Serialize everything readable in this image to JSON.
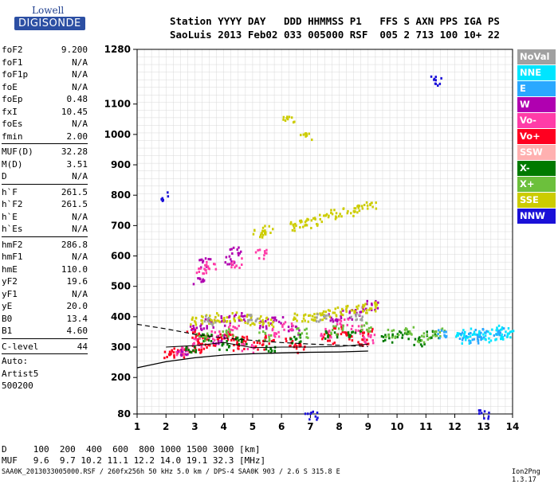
{
  "logo": {
    "top": "Lowell",
    "bottom": "DIGISONDE"
  },
  "header": {
    "line1": "Station YYYY DAY   DDD HHMMSS P1   FFS S AXN PPS IGA PS",
    "line2": "SaoLuis 2013 Feb02 033 005000 RSF  005 2 713 100 10+ 22"
  },
  "params": {
    "group1": [
      {
        "name": "foF2",
        "value": "9.200"
      },
      {
        "name": "foF1",
        "value": "N/A"
      },
      {
        "name": "foF1p",
        "value": "N/A"
      },
      {
        "name": "foE",
        "value": "N/A"
      },
      {
        "name": "foEp",
        "value": "0.48"
      },
      {
        "name": "fxI",
        "value": "10.45"
      },
      {
        "name": "foEs",
        "value": "N/A"
      },
      {
        "name": "fmin",
        "value": "2.00"
      }
    ],
    "group2": [
      {
        "name": "MUF(D)",
        "value": "32.28"
      },
      {
        "name": "M(D)",
        "value": "3.51"
      },
      {
        "name": "D",
        "value": "N/A"
      }
    ],
    "group3": [
      {
        "name": "h`F",
        "value": "261.5"
      },
      {
        "name": "h`F2",
        "value": "261.5"
      },
      {
        "name": "h`E",
        "value": "N/A"
      },
      {
        "name": "h`Es",
        "value": "N/A"
      }
    ],
    "group4": [
      {
        "name": "hmF2",
        "value": "286.8"
      },
      {
        "name": "hmF1",
        "value": "N/A"
      },
      {
        "name": "hmE",
        "value": "110.0"
      },
      {
        "name": "yF2",
        "value": "19.6"
      },
      {
        "name": "yF1",
        "value": "N/A"
      },
      {
        "name": "yE",
        "value": "20.0"
      },
      {
        "name": "B0",
        "value": "13.4"
      },
      {
        "name": "B1",
        "value": "4.60"
      }
    ],
    "clevel": {
      "name": "C-level",
      "value": "44"
    },
    "extra": [
      "Auto:",
      "Artist5",
      "500200"
    ]
  },
  "legend": [
    {
      "label": "NoVal",
      "color": "#a0a0a0"
    },
    {
      "label": "NNE",
      "color": "#00e5ff"
    },
    {
      "label": "E",
      "color": "#2aa8ff"
    },
    {
      "label": "W",
      "color": "#b000b0"
    },
    {
      "label": "Vo-",
      "color": "#ff3ca8"
    },
    {
      "label": "Vo+",
      "color": "#ff0020"
    },
    {
      "label": "SSW",
      "color": "#ffb0b0"
    },
    {
      "label": "X-",
      "color": "#007a00"
    },
    {
      "label": "X+",
      "color": "#6cc03c"
    },
    {
      "label": "SSE",
      "color": "#cccc00"
    },
    {
      "label": "NNW",
      "color": "#1a10d8"
    }
  ],
  "bottom": {
    "line1": "D     100  200  400  600  800 1000 1500 3000 [km]",
    "line2": "MUF   9.6  9.7 10.2 11.1 12.2 14.0 19.1 32.3 [MHz]"
  },
  "footer": "SAA0K_2013033005000.RSF / 260fx256h 50 kHz 5.0 km / DPS-4 SAA0K 903 / 2.6 S 315.8 E",
  "version": "Ion2Png 1.3.17",
  "chart_data": {
    "type": "scatter",
    "x": {
      "ticks": [
        1,
        2,
        3,
        4,
        5,
        6,
        7,
        8,
        9,
        10,
        11,
        12,
        13,
        14
      ],
      "range": [
        1,
        14
      ]
    },
    "y": {
      "ticks": [
        80,
        200,
        300,
        400,
        500,
        600,
        700,
        800,
        900,
        1000,
        1100,
        1280
      ],
      "range": [
        80,
        1280
      ]
    },
    "grid": true,
    "clusters": [
      {
        "color": "#ff0020",
        "pts": [
          [
            2.1,
            280
          ],
          [
            2.4,
            285
          ],
          [
            2.7,
            292
          ],
          [
            3.0,
            300
          ],
          [
            3.3,
            310
          ],
          [
            3.6,
            320
          ],
          [
            4.0,
            330
          ],
          [
            4.3,
            340
          ],
          [
            4.6,
            335
          ],
          [
            2.9,
            350
          ],
          [
            3.2,
            330
          ],
          [
            4.5,
            300
          ],
          [
            5.2,
            310
          ],
          [
            5.5,
            330
          ],
          [
            6.3,
            320
          ],
          [
            6.6,
            300
          ],
          [
            7.6,
            330
          ],
          [
            8.0,
            360
          ],
          [
            8.4,
            340
          ],
          [
            8.8,
            320
          ],
          [
            9.0,
            350
          ]
        ]
      },
      {
        "color": "#b000b0",
        "pts": [
          [
            3.0,
            370
          ],
          [
            3.5,
            380
          ],
          [
            4.1,
            390
          ],
          [
            4.5,
            400
          ],
          [
            5.3,
            380
          ],
          [
            5.8,
            390
          ],
          [
            6.4,
            360
          ],
          [
            7.8,
            400
          ],
          [
            8.2,
            410
          ],
          [
            8.7,
            420
          ],
          [
            3.3,
            580
          ],
          [
            4.2,
            590
          ],
          [
            4.4,
            620
          ],
          [
            3.1,
            520
          ],
          [
            9.1,
            440
          ],
          [
            2.6,
            280
          ],
          [
            3.8,
            330
          ]
        ]
      },
      {
        "color": "#cccc00",
        "pts": [
          [
            3.0,
            390
          ],
          [
            3.4,
            395
          ],
          [
            3.8,
            400
          ],
          [
            4.2,
            402
          ],
          [
            4.7,
            395
          ],
          [
            5.1,
            390
          ],
          [
            5.5,
            385
          ],
          [
            6.6,
            400
          ],
          [
            6.9,
            400
          ],
          [
            7.2,
            402
          ],
          [
            7.6,
            410
          ],
          [
            8.0,
            420
          ],
          [
            8.4,
            425
          ],
          [
            8.8,
            430
          ],
          [
            9.1,
            435
          ],
          [
            5.2,
            680
          ],
          [
            5.5,
            690
          ],
          [
            6.5,
            700
          ],
          [
            6.8,
            710
          ],
          [
            7.0,
            715
          ],
          [
            7.5,
            730
          ],
          [
            7.9,
            740
          ],
          [
            8.3,
            745
          ],
          [
            8.7,
            760
          ],
          [
            9.1,
            775
          ],
          [
            6.2,
            1050
          ],
          [
            6.8,
            1000
          ]
        ]
      },
      {
        "color": "#ff3ca8",
        "pts": [
          [
            2.5,
            290
          ],
          [
            3.1,
            320
          ],
          [
            3.6,
            340
          ],
          [
            4.3,
            360
          ],
          [
            4.8,
            300
          ],
          [
            5.7,
            350
          ],
          [
            6.2,
            370
          ],
          [
            7.5,
            350
          ],
          [
            8.1,
            380
          ],
          [
            8.6,
            360
          ],
          [
            3.2,
            560
          ],
          [
            3.5,
            570
          ],
          [
            4.4,
            580
          ],
          [
            5.3,
            610
          ],
          [
            9.0,
            330
          ]
        ]
      },
      {
        "color": "#007a00",
        "pts": [
          [
            2.8,
            300
          ],
          [
            3.4,
            330
          ],
          [
            4.0,
            310
          ],
          [
            4.6,
            320
          ],
          [
            5.6,
            300
          ],
          [
            6.5,
            330
          ],
          [
            7.7,
            340
          ],
          [
            8.5,
            350
          ],
          [
            9.6,
            330
          ],
          [
            10.2,
            340
          ],
          [
            10.7,
            320
          ],
          [
            11.2,
            345
          ]
        ]
      },
      {
        "color": "#6cc03c",
        "pts": [
          [
            3.2,
            340
          ],
          [
            4.1,
            350
          ],
          [
            5.4,
            340
          ],
          [
            6.7,
            350
          ],
          [
            7.9,
            360
          ],
          [
            8.9,
            370
          ],
          [
            9.8,
            345
          ],
          [
            10.4,
            360
          ],
          [
            10.9,
            335
          ],
          [
            11.4,
            355
          ]
        ]
      },
      {
        "color": "#00e5ff",
        "pts": [
          [
            12.2,
            345
          ],
          [
            12.6,
            350
          ],
          [
            13.0,
            345
          ],
          [
            13.4,
            360
          ],
          [
            13.8,
            350
          ],
          [
            12.4,
            330
          ],
          [
            13.2,
            335
          ],
          [
            13.6,
            340
          ]
        ]
      },
      {
        "color": "#2aa8ff",
        "pts": [
          [
            12.3,
            340
          ],
          [
            12.9,
            350
          ],
          [
            13.5,
            355
          ],
          [
            11.6,
            345
          ],
          [
            12.7,
            330
          ]
        ]
      },
      {
        "color": "#1a10d8",
        "pts": [
          [
            2.0,
            800
          ],
          [
            11.3,
            1180
          ],
          [
            13.0,
            80
          ],
          [
            7.0,
            80
          ]
        ]
      },
      {
        "color": "#a0a0a0",
        "pts": [
          [
            3.5,
            390
          ],
          [
            5.0,
            395
          ],
          [
            7.4,
            400
          ],
          [
            8.6,
            405
          ]
        ]
      }
    ],
    "curves": {
      "solid": [
        [
          1,
          232
        ],
        [
          2,
          252
        ],
        [
          3,
          265
        ],
        [
          4,
          274
        ],
        [
          5,
          278
        ],
        [
          6,
          281
        ],
        [
          7,
          283
        ],
        [
          8,
          284
        ],
        [
          9,
          287
        ]
      ],
      "dashed": [
        [
          1,
          375
        ],
        [
          2,
          360
        ],
        [
          3,
          342
        ],
        [
          4,
          330
        ],
        [
          5,
          322
        ],
        [
          6,
          315
        ],
        [
          7,
          310
        ],
        [
          8,
          306
        ],
        [
          9,
          302
        ]
      ],
      "trace": [
        [
          2,
          300
        ],
        [
          3,
          305
        ],
        [
          4,
          315
        ],
        [
          5,
          298
        ],
        [
          6,
          300
        ],
        [
          7,
          300
        ],
        [
          8,
          302
        ],
        [
          9,
          310
        ]
      ]
    }
  }
}
